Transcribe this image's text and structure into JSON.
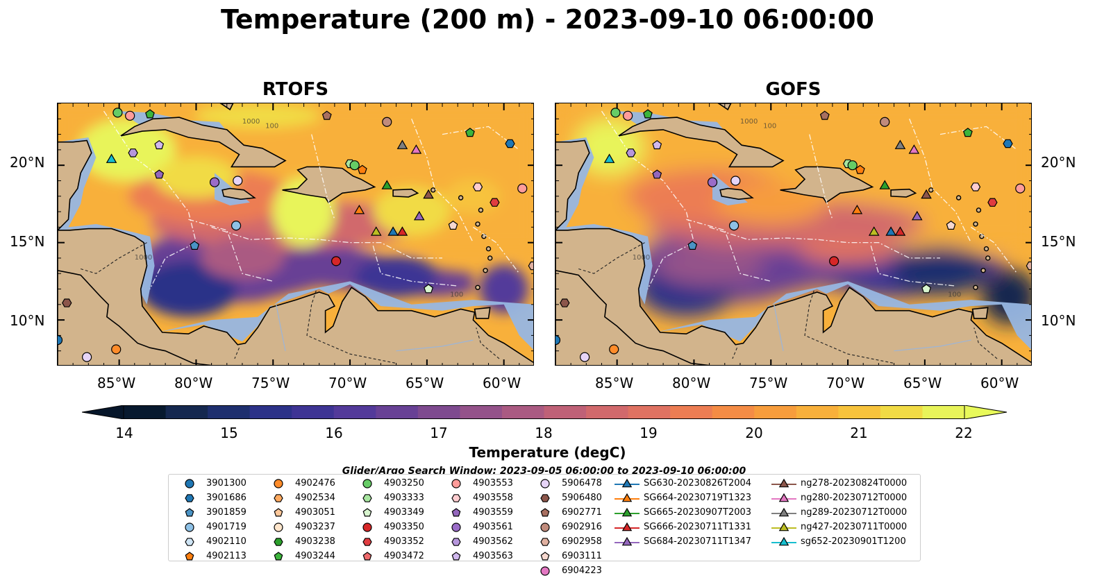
{
  "title": "Temperature (200 m) - 2023-09-10 06:00:00",
  "panels": [
    {
      "title": "RTOFS"
    },
    {
      "title": "GOFS"
    }
  ],
  "axes": {
    "lat_labels": [
      "20°N",
      "15°N",
      "10°N"
    ],
    "lon_labels": [
      "85°W",
      "80°W",
      "75°W",
      "70°W",
      "65°W",
      "60°W"
    ],
    "lon_range": [
      -89,
      -58
    ],
    "lat_range": [
      7,
      24
    ]
  },
  "contour_labels": [
    "1000",
    "1000",
    "100",
    "100"
  ],
  "colorbar": {
    "label": "Temperature (degC)",
    "ticks": [
      "14",
      "15",
      "16",
      "17",
      "18",
      "19",
      "20",
      "21",
      "22"
    ],
    "range": [
      14,
      22
    ],
    "colors": [
      "#07192e",
      "#15284f",
      "#1e2f6e",
      "#2c3288",
      "#3e3494",
      "#533a9a",
      "#684195",
      "#7e4a8f",
      "#94528a",
      "#aa5a82",
      "#bf6177",
      "#d1696c",
      "#df7262",
      "#ec7d53",
      "#f48c45",
      "#f79d3c",
      "#f8b03b",
      "#f7c33c",
      "#f1db45",
      "#e8f45a"
    ],
    "under_color": "#06162a",
    "over_color": "#e8f95a"
  },
  "search_window": "Glider/Argo Search Window: 2023-09-05 06:00:00 to 2023-09-10 06:00:00",
  "legend": [
    {
      "label": "3901300",
      "marker": "circle",
      "color": "#1f77b4"
    },
    {
      "label": "3901686",
      "marker": "hexagon",
      "color": "#1f77b4"
    },
    {
      "label": "3901859",
      "marker": "pentagon",
      "color": "#4a93c5"
    },
    {
      "label": "4901719",
      "marker": "circle",
      "color": "#8ec1e6"
    },
    {
      "label": "4902110",
      "marker": "hexagon",
      "color": "#cfe5f5"
    },
    {
      "label": "4902113",
      "marker": "pentagon",
      "color": "#ff7f0e"
    },
    {
      "label": "4902476",
      "marker": "circle",
      "color": "#ff8c2a"
    },
    {
      "label": "4902534",
      "marker": "hexagon",
      "color": "#ffaa60"
    },
    {
      "label": "4903051",
      "marker": "pentagon",
      "color": "#ffc89a"
    },
    {
      "label": "4903237",
      "marker": "circle",
      "color": "#ffe6cc"
    },
    {
      "label": "4903238",
      "marker": "hexagon",
      "color": "#2ca02c"
    },
    {
      "label": "4903244",
      "marker": "pentagon",
      "color": "#3cb43c"
    },
    {
      "label": "4903250",
      "marker": "circle",
      "color": "#66cc66"
    },
    {
      "label": "4903333",
      "marker": "hexagon",
      "color": "#a8e6a0"
    },
    {
      "label": "4903349",
      "marker": "pentagon",
      "color": "#d8f5cf"
    },
    {
      "label": "4903350",
      "marker": "circle",
      "color": "#d62728"
    },
    {
      "label": "4903352",
      "marker": "hexagon",
      "color": "#e03c40"
    },
    {
      "label": "4903472",
      "marker": "pentagon",
      "color": "#ef6a6c"
    },
    {
      "label": "4903553",
      "marker": "circle",
      "color": "#ff9c9a"
    },
    {
      "label": "4903558",
      "marker": "hexagon",
      "color": "#ffcdd0"
    },
    {
      "label": "4903559",
      "marker": "pentagon",
      "color": "#9467bd"
    },
    {
      "label": "4903561",
      "marker": "circle",
      "color": "#9a6cc8"
    },
    {
      "label": "4903562",
      "marker": "hexagon",
      "color": "#b696dc"
    },
    {
      "label": "4903563",
      "marker": "pentagon",
      "color": "#d0b8ee"
    },
    {
      "label": "5906478",
      "marker": "circle",
      "color": "#e6d4f7"
    },
    {
      "label": "5906480",
      "marker": "hexagon",
      "color": "#8c564b"
    },
    {
      "label": "6902771",
      "marker": "pentagon",
      "color": "#a86f60"
    },
    {
      "label": "6902916",
      "marker": "circle",
      "color": "#c08b7c"
    },
    {
      "label": "6902958",
      "marker": "hexagon",
      "color": "#e0b0a0"
    },
    {
      "label": "6903111",
      "marker": "pentagon",
      "color": "#f6d8cf"
    },
    {
      "label": "6904223",
      "marker": "circle",
      "color": "#e377c2"
    },
    {
      "label": "SG630-20230826T2004",
      "marker": "triangle",
      "color": "#1f77b4"
    },
    {
      "label": "SG664-20230719T1323",
      "marker": "triangle",
      "color": "#ff7f0e"
    },
    {
      "label": "SG665-20230907T2003",
      "marker": "triangle",
      "color": "#2ca02c"
    },
    {
      "label": "SG666-20230711T1331",
      "marker": "triangle",
      "color": "#d62728"
    },
    {
      "label": "SG684-20230711T1347",
      "marker": "triangle",
      "color": "#9467bd"
    },
    {
      "label": "ng278-20230824T0000",
      "marker": "triangle",
      "color": "#8c564b"
    },
    {
      "label": "ng280-20230712T0000",
      "marker": "triangle",
      "color": "#e377c2"
    },
    {
      "label": "ng289-20230712T0000",
      "marker": "triangle",
      "color": "#7f7f7f"
    },
    {
      "label": "ng427-20230711T0000",
      "marker": "triangle",
      "color": "#bcbd22"
    },
    {
      "label": "sg652-20230901T1200",
      "marker": "triangle",
      "color": "#17becf"
    }
  ],
  "observations": [
    {
      "id": "4903250",
      "lon": -85.1,
      "lat": 23.4
    },
    {
      "id": "4903553",
      "lon": -84.3,
      "lat": 23.2
    },
    {
      "id": "4903244",
      "lon": -83.0,
      "lat": 23.3
    },
    {
      "id": "6902771",
      "lon": -71.5,
      "lat": 23.2
    },
    {
      "id": "6902916",
      "lon": -67.6,
      "lat": 22.8
    },
    {
      "id": "4903244",
      "lon": -62.2,
      "lat": 22.1
    },
    {
      "id": "3901686",
      "lon": -59.6,
      "lat": 21.4
    },
    {
      "id": "ng289-20230712T0000",
      "lon": -66.6,
      "lat": 21.3
    },
    {
      "id": "ng280-20230712T0000",
      "lon": -65.7,
      "lat": 21.0
    },
    {
      "id": "sg652-20230901T1200",
      "lon": -85.5,
      "lat": 20.4
    },
    {
      "id": "4903562",
      "lon": -84.1,
      "lat": 20.8
    },
    {
      "id": "4903563",
      "lon": -82.4,
      "lat": 21.3
    },
    {
      "id": "4903559",
      "lon": -82.4,
      "lat": 19.4
    },
    {
      "id": "4903333",
      "lon": -70.0,
      "lat": 20.1
    },
    {
      "id": "4903250",
      "lon": -69.7,
      "lat": 20.0
    },
    {
      "id": "4902113",
      "lon": -69.2,
      "lat": 19.7
    },
    {
      "id": "4903561",
      "lon": -78.8,
      "lat": 18.9
    },
    {
      "id": "5906478",
      "lon": -77.3,
      "lat": 19.0
    },
    {
      "id": "SG665-20230907T2003",
      "lon": -67.6,
      "lat": 18.7
    },
    {
      "id": "4903558",
      "lon": -61.7,
      "lat": 18.6
    },
    {
      "id": "4903553",
      "lon": -58.8,
      "lat": 18.5
    },
    {
      "id": "ng278-20230824T0000",
      "lon": -64.9,
      "lat": 18.1
    },
    {
      "id": "4903352",
      "lon": -60.6,
      "lat": 17.6
    },
    {
      "id": "SG664-20230719T1323",
      "lon": -69.4,
      "lat": 17.1
    },
    {
      "id": "SG684-20230711T1347",
      "lon": -65.5,
      "lat": 16.7
    },
    {
      "id": "6903111",
      "lon": -63.3,
      "lat": 16.1
    },
    {
      "id": "4901719",
      "lon": -77.4,
      "lat": 16.1
    },
    {
      "id": "ng427-20230711T0000",
      "lon": -68.3,
      "lat": 15.7
    },
    {
      "id": "SG630-20230826T2004",
      "lon": -67.2,
      "lat": 15.7
    },
    {
      "id": "SG666-20230711T1331",
      "lon": -66.6,
      "lat": 15.7
    },
    {
      "id": "3901859",
      "lon": -80.1,
      "lat": 14.8
    },
    {
      "id": "4903350",
      "lon": -70.9,
      "lat": 13.8
    },
    {
      "id": "6902958",
      "lon": -58.1,
      "lat": 13.5
    },
    {
      "id": "4903349",
      "lon": -64.9,
      "lat": 12.0
    },
    {
      "id": "5906480",
      "lon": -88.4,
      "lat": 11.1
    },
    {
      "id": "3901300",
      "lon": -89.0,
      "lat": 8.7
    },
    {
      "id": "4902476",
      "lon": -85.2,
      "lat": 8.1
    },
    {
      "id": "5906478",
      "lon": -87.1,
      "lat": 7.6
    }
  ]
}
